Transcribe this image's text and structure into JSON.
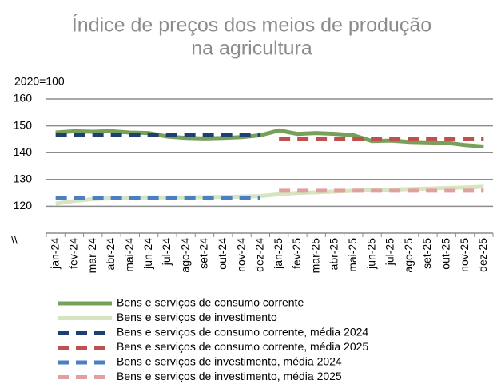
{
  "chart_data": {
    "type": "line",
    "title": [
      "Índice de preços dos meios de produção",
      "na agricultura"
    ],
    "y_axis_label": "2020=100",
    "y_axis_break": "\\\\",
    "categories": [
      "jan-24",
      "fev-24",
      "mar-24",
      "abr-24",
      "mai-24",
      "jun-24",
      "jul-24",
      "ago-24",
      "set-24",
      "out-24",
      "nov-24",
      "dez-24",
      "jan-25",
      "fev-25",
      "mar-25",
      "abr-25",
      "mai-25",
      "jun-25",
      "jul-25",
      "ago-25",
      "set-25",
      "out-25",
      "nov-25",
      "dez-25"
    ],
    "ylim": [
      110,
      160
    ],
    "yticks": [
      120,
      130,
      140,
      150,
      160
    ],
    "grid": true,
    "series": [
      {
        "name": "Bens e serviços de consumo corrente",
        "color": "#77a05a",
        "line_style": "solid",
        "values": [
          147.5,
          148,
          147.8,
          148,
          147.5,
          147.3,
          146,
          145.5,
          145.3,
          145.5,
          145.8,
          146.5,
          148.3,
          147,
          147.3,
          147,
          146.5,
          144.3,
          144.5,
          144,
          143.8,
          143.7,
          142.8,
          142.3
        ]
      },
      {
        "name": "Bens e serviços de investimento",
        "color": "#d6e4c0",
        "line_style": "solid",
        "values": [
          121,
          122,
          122.7,
          123,
          123.2,
          123.3,
          123.3,
          123.3,
          123.4,
          123.5,
          123.6,
          123.8,
          124.5,
          125,
          125.2,
          125.5,
          125.8,
          126,
          126.2,
          126.4,
          126.6,
          126.8,
          127,
          127.3
        ]
      },
      {
        "name": "Bens e serviços de consumo corrente, média 2024",
        "color": "#1f3f6e",
        "line_style": "dashed",
        "values": [
          146.5,
          146.5,
          146.5,
          146.5,
          146.5,
          146.5,
          146.5,
          146.5,
          146.5,
          146.5,
          146.5,
          146.5,
          null,
          null,
          null,
          null,
          null,
          null,
          null,
          null,
          null,
          null,
          null,
          null
        ]
      },
      {
        "name": "Bens e serviços de consumo corrente, média 2025",
        "color": "#c0504d",
        "line_style": "dashed",
        "values": [
          null,
          null,
          null,
          null,
          null,
          null,
          null,
          null,
          null,
          null,
          null,
          null,
          145,
          145,
          145,
          145,
          145,
          145,
          145,
          145,
          145,
          145,
          145,
          145
        ]
      },
      {
        "name": "Bens e serviços de investimento, média 2024",
        "color": "#4a7fc1",
        "line_style": "dashed",
        "values": [
          123.2,
          123.2,
          123.2,
          123.2,
          123.2,
          123.2,
          123.2,
          123.2,
          123.2,
          123.2,
          123.2,
          123.2,
          null,
          null,
          null,
          null,
          null,
          null,
          null,
          null,
          null,
          null,
          null,
          null
        ]
      },
      {
        "name": "Bens e serviços de investimento, média 2025",
        "color": "#e0a0a0",
        "line_style": "dashed",
        "values": [
          null,
          null,
          null,
          null,
          null,
          null,
          null,
          null,
          null,
          null,
          null,
          null,
          125.8,
          125.8,
          125.8,
          125.8,
          125.8,
          125.8,
          125.8,
          125.8,
          125.8,
          125.8,
          125.8,
          125.8
        ]
      }
    ]
  }
}
